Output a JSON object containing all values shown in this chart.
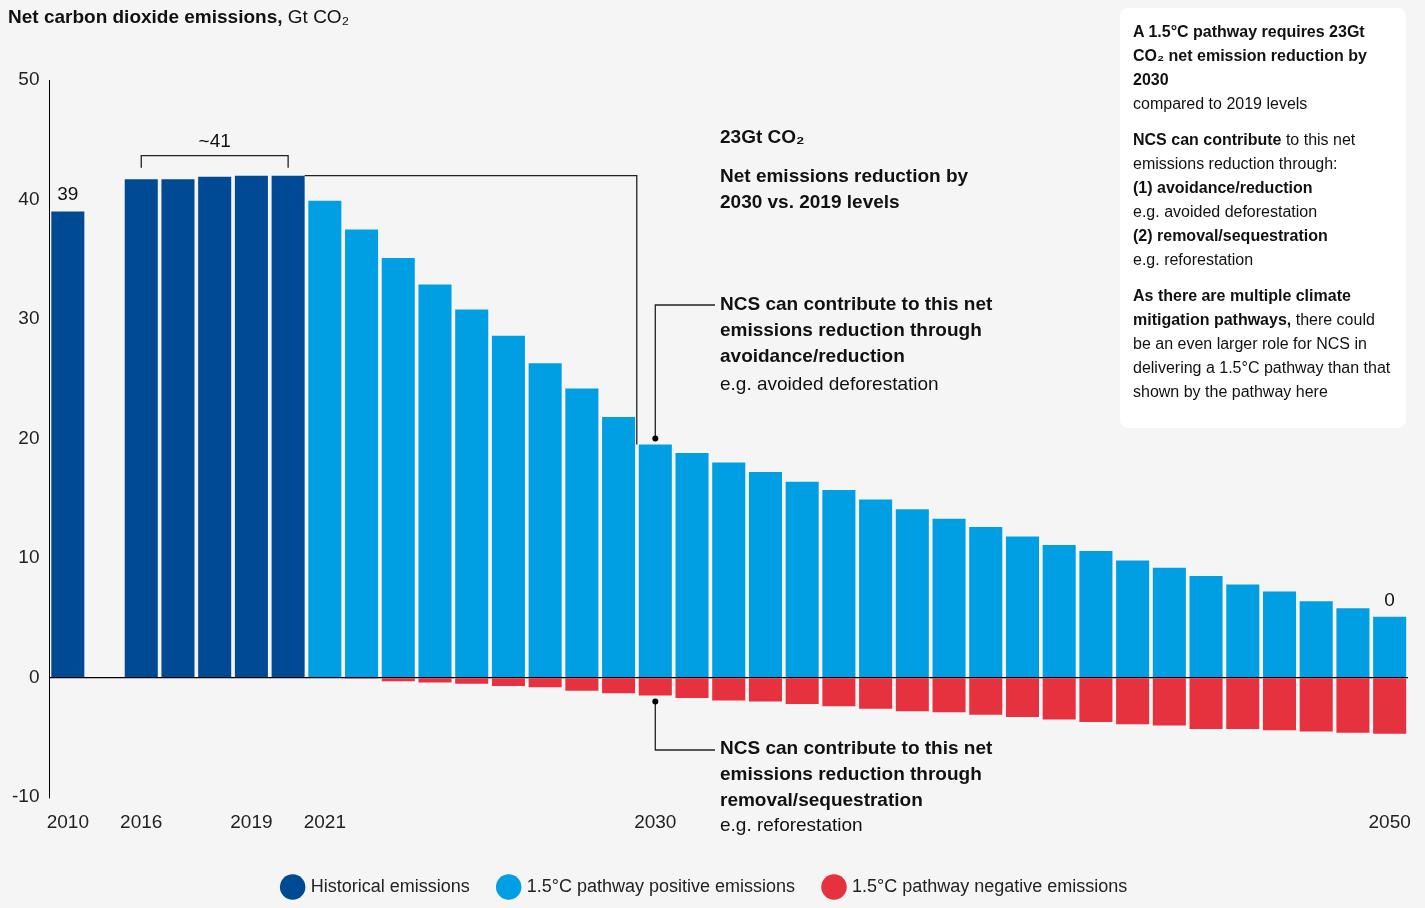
{
  "chart_data": {
    "type": "bar",
    "title": "Net carbon dioxide emissions,",
    "ylabel": "Gt CO₂",
    "stacked": true,
    "legend": "bottom",
    "categories": [
      "2010",
      null,
      "2016",
      null,
      null,
      "2019",
      null,
      "2021",
      null,
      null,
      null,
      null,
      null,
      null,
      null,
      null,
      "2030",
      null,
      null,
      null,
      null,
      null,
      null,
      null,
      null,
      null,
      null,
      null,
      null,
      null,
      null,
      null,
      null,
      null,
      null,
      null,
      "2050"
    ],
    "ylim": [
      -10,
      50
    ],
    "yticks": [
      -10,
      0,
      10,
      20,
      30,
      40,
      50
    ],
    "series": [
      {
        "name": "Historical emissions",
        "color": "#004a93",
        "values": [
          39,
          null,
          41.7,
          41.7,
          41.9,
          42,
          42,
          null,
          null,
          null,
          null,
          null,
          null,
          null,
          null,
          null,
          null,
          null,
          null,
          null,
          null,
          null,
          null,
          null,
          null,
          null,
          null,
          null,
          null,
          null,
          null,
          null,
          null,
          null,
          null,
          null,
          null
        ]
      },
      {
        "name": "1.5°C pathway positive emissions",
        "color": "#009fe3",
        "values": [
          null,
          null,
          null,
          null,
          null,
          null,
          null,
          39.9,
          37.5,
          35.1,
          32.9,
          30.8,
          28.6,
          26.3,
          24.2,
          21.8,
          19.5,
          18.8,
          18.0,
          17.2,
          16.4,
          15.7,
          14.9,
          14.1,
          13.3,
          12.6,
          11.8,
          11.1,
          10.6,
          9.8,
          9.2,
          8.5,
          7.8,
          7.2,
          6.4,
          5.8,
          5.1
        ]
      },
      {
        "name": "1.5°C pathway negative emissions",
        "color": "#e6323e",
        "values": [
          null,
          null,
          null,
          null,
          null,
          null,
          null,
          0,
          -0.1,
          -0.3,
          -0.4,
          -0.5,
          -0.7,
          -0.8,
          -1.1,
          -1.3,
          -1.5,
          -1.7,
          -1.9,
          -2.0,
          -2.2,
          -2.4,
          -2.6,
          -2.8,
          -2.9,
          -3.1,
          -3.3,
          -3.5,
          -3.7,
          -3.9,
          -4.0,
          -4.3,
          -4.3,
          -4.4,
          -4.5,
          -4.6,
          -4.7
        ]
      }
    ],
    "annotations": [
      {
        "text": "39",
        "x": "2010",
        "y": 39
      },
      "~41",
      {
        "text": "0",
        "x": "2050",
        "y": 5.1
      },
      "23Gt CO₂",
      "Net emissions reduction by 2030 vs. 2019 levels",
      {
        "text": "NCS can contribute to this net emissions reduction through avoidance/reduction",
        "x": "2030",
        "y": 19.5
      },
      "e.g. avoided deforestation",
      {
        "text": "NCS can contribute to this net emissions reduction through removal/sequestration",
        "x": "2030",
        "y": -1.5
      },
      "e.g. reforestation",
      "A 1.5°C pathway requires 23Gt CO₂ net emission reduction by 2030",
      "compared to 2019 levels",
      "NCS can contribute",
      "to this net emissions reduction through:",
      "(1) avoidance/reduction",
      "e.g. avoided deforestation",
      "(2) removal/sequestration",
      "e.g. reforestation",
      "As there are multiple climate mitigation pathways,",
      "there could be an even larger role for NCS in delivering a 1.5°C pathway than that shown by the pathway here"
    ]
  }
}
